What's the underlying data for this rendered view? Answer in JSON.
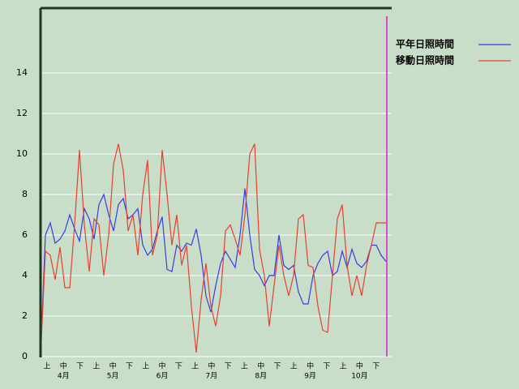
{
  "chart_data": {
    "type": "line",
    "x_tick_labels": [
      "上",
      "中",
      "下",
      "上",
      "中",
      "下",
      "上",
      "中",
      "下",
      "上",
      "中",
      "下",
      "上",
      "中",
      "下",
      "上",
      "中",
      "下",
      "上",
      "中",
      "下"
    ],
    "months": [
      "4月",
      "5月",
      "6月",
      "7月",
      "8月",
      "9月",
      "10月"
    ],
    "ylim": [
      0,
      17.2
    ],
    "yticks": [
      0,
      2,
      4,
      6,
      8,
      10,
      12,
      14
    ],
    "grid": true,
    "legend": "top-right",
    "series": [
      {
        "name": "平年日照時間",
        "color": "#3a3ae6",
        "values": [
          0,
          6.0,
          6.6,
          5.6,
          5.8,
          6.2,
          7.0,
          6.3,
          5.7,
          7.3,
          6.8,
          5.8,
          7.5,
          8.0,
          7.0,
          6.2,
          7.5,
          7.8,
          6.8,
          7.0,
          7.3,
          5.5,
          5.0,
          5.3,
          6.2,
          6.9,
          4.3,
          4.2,
          5.5,
          5.2,
          5.6,
          5.5,
          6.3,
          5.0,
          3.0,
          2.2,
          3.5,
          4.6,
          5.2,
          4.8,
          4.4,
          6.0,
          8.3,
          6.0,
          4.3,
          4.0,
          3.5,
          4.0,
          4.0,
          6.0,
          4.5,
          4.3,
          4.5,
          3.2,
          2.6,
          2.6,
          4.0,
          4.6,
          5.0,
          5.2,
          4.0,
          4.2,
          5.2,
          4.4,
          5.3,
          4.6,
          4.4,
          4.7,
          5.5,
          5.5,
          5.0,
          4.7
        ]
      },
      {
        "name": "移動日照時間",
        "color": "#e8402e",
        "values": [
          0,
          5.2,
          5.0,
          3.8,
          5.4,
          3.4,
          3.4,
          6.5,
          10.2,
          6.5,
          4.2,
          6.8,
          6.5,
          4.0,
          6.0,
          9.5,
          10.5,
          9.2,
          6.2,
          7.0,
          5.0,
          8.0,
          9.7,
          5.0,
          6.0,
          10.2,
          8.0,
          5.5,
          7.0,
          4.5,
          5.5,
          2.5,
          0.2,
          2.8,
          4.6,
          2.5,
          1.5,
          3.0,
          6.2,
          6.5,
          5.8,
          5.0,
          7.0,
          10.0,
          10.5,
          5.3,
          4.0,
          1.5,
          3.5,
          5.5,
          4.0,
          3.0,
          4.0,
          6.8,
          7.0,
          4.5,
          4.4,
          2.5,
          1.3,
          1.2,
          4.0,
          6.8,
          7.5,
          4.5,
          3.0,
          4.0,
          3.0,
          4.5,
          5.5,
          6.6,
          6.6,
          6.6
        ]
      }
    ]
  }
}
